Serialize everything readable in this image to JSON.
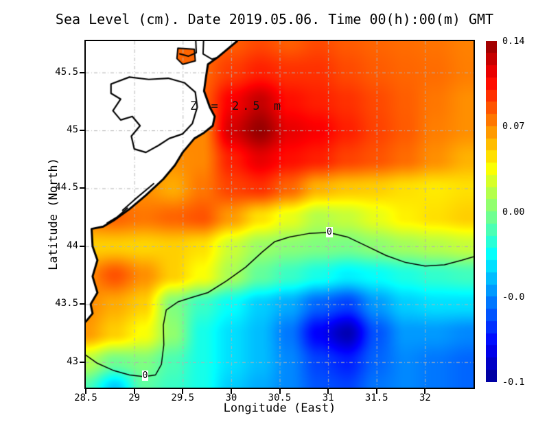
{
  "title": "Sea Level (cm). Date 2019.05.06. Time 00(h):00(m) GMT",
  "annotation": "Z = 2.5 m",
  "axes": {
    "x": {
      "label": "Longitude (East)",
      "range": [
        28.5,
        32.5
      ],
      "ticks": [
        {
          "v": 28.5,
          "t": "28.5"
        },
        {
          "v": 29,
          "t": "29"
        },
        {
          "v": 29.5,
          "t": "29.5"
        },
        {
          "v": 30,
          "t": "30"
        },
        {
          "v": 30.5,
          "t": "30.5"
        },
        {
          "v": 31,
          "t": "31"
        },
        {
          "v": 31.5,
          "t": "31.5"
        },
        {
          "v": 32,
          "t": "32"
        }
      ]
    },
    "y": {
      "label": "Latitude (North)",
      "range": [
        42.78,
        45.77
      ],
      "ticks": [
        {
          "v": 43,
          "t": "43"
        },
        {
          "v": 43.5,
          "t": "43.5"
        },
        {
          "v": 44,
          "t": "44"
        },
        {
          "v": 44.5,
          "t": "44.5"
        },
        {
          "v": 45,
          "t": "45"
        },
        {
          "v": 45.5,
          "t": "45.5"
        }
      ]
    }
  },
  "colorbar": {
    "steps": 28,
    "top_value": 0.14,
    "bottom_value": -0.14,
    "labels": [
      {
        "t": "0.14",
        "v": 0.14
      },
      {
        "t": "0.07",
        "v": 0.07
      },
      {
        "t": "0.00",
        "v": 0.0
      },
      {
        "t": "-0.0",
        "v": -0.07
      },
      {
        "t": "-0.1",
        "v": -0.14
      }
    ]
  },
  "chart_data": {
    "type": "heatmap",
    "title": "Sea Level (cm). Date 2019.05.06. Time 00(h):00(m) GMT",
    "xlabel": "Longitude (East)",
    "ylabel": "Latitude (North)",
    "colormap": "jet",
    "value_range": [
      -0.145,
      0.145
    ],
    "x": [
      28.5,
      28.8,
      29.1,
      29.4,
      29.7,
      30.0,
      30.3,
      30.6,
      30.9,
      31.2,
      31.5,
      31.8,
      32.1,
      32.45
    ],
    "y": [
      45.77,
      45.5,
      45.25,
      45.0,
      44.75,
      44.5,
      44.25,
      44.0,
      43.75,
      43.5,
      43.25,
      43.0,
      42.78
    ],
    "values": [
      [
        0.078,
        0.078,
        0.078,
        0.078,
        0.078,
        0.082,
        0.088,
        0.082,
        0.088,
        0.083,
        0.08,
        0.078,
        0.076,
        0.072
      ],
      [
        0.08,
        0.08,
        0.08,
        0.08,
        0.08,
        0.092,
        0.1,
        0.095,
        0.095,
        0.088,
        0.083,
        0.08,
        0.078,
        0.073
      ],
      [
        0.08,
        0.08,
        0.08,
        0.08,
        0.082,
        0.11,
        0.125,
        0.105,
        0.1,
        0.095,
        0.088,
        0.082,
        0.075,
        0.068
      ],
      [
        0.075,
        0.075,
        0.075,
        0.072,
        0.07,
        0.12,
        0.138,
        0.115,
        0.11,
        0.1,
        0.09,
        0.083,
        0.073,
        0.068
      ],
      [
        0.072,
        0.072,
        0.072,
        0.068,
        0.07,
        0.1,
        0.115,
        0.105,
        0.1,
        0.09,
        0.085,
        0.078,
        0.068,
        0.058
      ],
      [
        0.07,
        0.07,
        0.068,
        0.06,
        0.075,
        0.09,
        0.095,
        0.08,
        0.058,
        0.052,
        0.05,
        0.045,
        0.042,
        0.045
      ],
      [
        0.075,
        0.08,
        0.075,
        0.08,
        0.085,
        0.065,
        0.045,
        0.03,
        0.015,
        0.02,
        0.03,
        0.04,
        0.045,
        0.05
      ],
      [
        0.05,
        0.05,
        0.048,
        0.05,
        0.045,
        0.022,
        0.008,
        0.003,
        0.0,
        -0.002,
        0.004,
        0.01,
        0.015,
        0.02
      ],
      [
        0.068,
        0.085,
        0.068,
        0.05,
        0.035,
        0.012,
        -0.008,
        -0.02,
        -0.03,
        -0.04,
        -0.035,
        -0.028,
        -0.022,
        -0.018
      ],
      [
        0.07,
        0.06,
        0.05,
        0.0,
        -0.02,
        -0.035,
        -0.05,
        -0.06,
        -0.08,
        -0.09,
        -0.065,
        -0.05,
        -0.045,
        -0.045
      ],
      [
        0.065,
        0.05,
        0.035,
        0.005,
        -0.03,
        -0.045,
        -0.055,
        -0.075,
        -0.11,
        -0.13,
        -0.085,
        -0.065,
        -0.065,
        -0.07
      ],
      [
        0.015,
        -0.005,
        0.0,
        -0.015,
        -0.03,
        -0.045,
        -0.055,
        -0.07,
        -0.09,
        -0.1,
        -0.08,
        -0.07,
        -0.075,
        -0.08
      ],
      [
        -0.015,
        -0.05,
        -0.01,
        -0.02,
        -0.03,
        -0.05,
        -0.06,
        -0.07,
        -0.085,
        -0.09,
        -0.075,
        -0.07,
        -0.075,
        -0.08
      ]
    ],
    "zero_contour": [
      [
        28.5,
        43.06
      ],
      [
        28.62,
        42.99
      ],
      [
        28.78,
        42.93
      ],
      [
        28.95,
        42.89
      ],
      [
        29.1,
        42.875
      ],
      [
        29.22,
        42.89
      ],
      [
        29.28,
        42.98
      ],
      [
        29.305,
        43.15
      ],
      [
        29.3,
        43.32
      ],
      [
        29.33,
        43.45
      ],
      [
        29.45,
        43.52
      ],
      [
        29.6,
        43.56
      ],
      [
        29.76,
        43.6
      ],
      [
        29.95,
        43.7
      ],
      [
        30.15,
        43.82
      ],
      [
        30.32,
        43.95
      ],
      [
        30.45,
        44.04
      ],
      [
        30.6,
        44.08
      ],
      [
        30.8,
        44.11
      ],
      [
        31.0,
        44.12
      ],
      [
        31.2,
        44.08
      ],
      [
        31.4,
        44.0
      ],
      [
        31.6,
        43.92
      ],
      [
        31.8,
        43.86
      ],
      [
        32.0,
        43.83
      ],
      [
        32.2,
        43.84
      ],
      [
        32.38,
        43.88
      ],
      [
        32.5,
        43.91
      ]
    ],
    "contour_labels": [
      {
        "text": "0",
        "lon": 31.02,
        "lat": 44.12
      },
      {
        "text": "0",
        "lon": 29.12,
        "lat": 42.88
      }
    ],
    "coastline": [
      [
        30.06,
        45.77
      ],
      [
        29.86,
        45.63
      ],
      [
        29.76,
        45.57
      ],
      [
        29.74,
        45.46
      ],
      [
        29.72,
        45.34
      ],
      [
        29.78,
        45.2
      ],
      [
        29.83,
        45.12
      ],
      [
        29.81,
        45.04
      ],
      [
        29.72,
        44.98
      ],
      [
        29.62,
        44.93
      ],
      [
        29.5,
        44.81
      ],
      [
        29.42,
        44.7
      ],
      [
        29.3,
        44.58
      ],
      [
        29.12,
        44.44
      ],
      [
        28.95,
        44.32
      ],
      [
        28.8,
        44.23
      ],
      [
        28.68,
        44.17
      ],
      [
        28.56,
        44.15
      ],
      [
        28.57,
        44.0
      ],
      [
        28.62,
        43.88
      ],
      [
        28.57,
        43.74
      ],
      [
        28.62,
        43.6
      ],
      [
        28.55,
        43.5
      ],
      [
        28.57,
        43.42
      ],
      [
        28.5,
        43.35
      ]
    ],
    "lagoon": [
      [
        28.76,
        45.4
      ],
      [
        28.95,
        45.46
      ],
      [
        29.15,
        45.44
      ],
      [
        29.35,
        45.45
      ],
      [
        29.52,
        45.41
      ],
      [
        29.63,
        45.33
      ],
      [
        29.65,
        45.2
      ],
      [
        29.6,
        45.06
      ],
      [
        29.5,
        44.97
      ],
      [
        29.36,
        44.93
      ],
      [
        29.25,
        44.87
      ],
      [
        29.12,
        44.81
      ],
      [
        29.0,
        44.84
      ],
      [
        28.97,
        44.95
      ],
      [
        29.06,
        45.04
      ],
      [
        28.98,
        45.12
      ],
      [
        28.86,
        45.09
      ],
      [
        28.78,
        45.17
      ],
      [
        28.86,
        45.27
      ],
      [
        28.76,
        45.32
      ]
    ],
    "coastal_lagoon_lines": [
      [
        [
          29.2,
          44.54
        ],
        [
          29.0,
          44.4
        ],
        [
          28.88,
          44.31
        ]
      ],
      [
        [
          28.93,
          44.33
        ],
        [
          28.82,
          44.25
        ],
        [
          28.72,
          44.2
        ]
      ]
    ],
    "river_lines": [
      [
        [
          29.635,
          45.77
        ],
        [
          29.64,
          45.67
        ],
        [
          29.56,
          45.64
        ],
        [
          29.47,
          45.66
        ]
      ],
      [
        [
          29.715,
          45.77
        ],
        [
          29.71,
          45.66
        ],
        [
          29.8,
          45.615
        ],
        [
          29.86,
          45.63
        ]
      ]
    ],
    "inlet": {
      "poly": [
        [
          29.45,
          45.71
        ],
        [
          29.62,
          45.7
        ],
        [
          29.63,
          45.6
        ],
        [
          29.5,
          45.57
        ],
        [
          29.44,
          45.62
        ]
      ],
      "value": 0.08
    }
  }
}
